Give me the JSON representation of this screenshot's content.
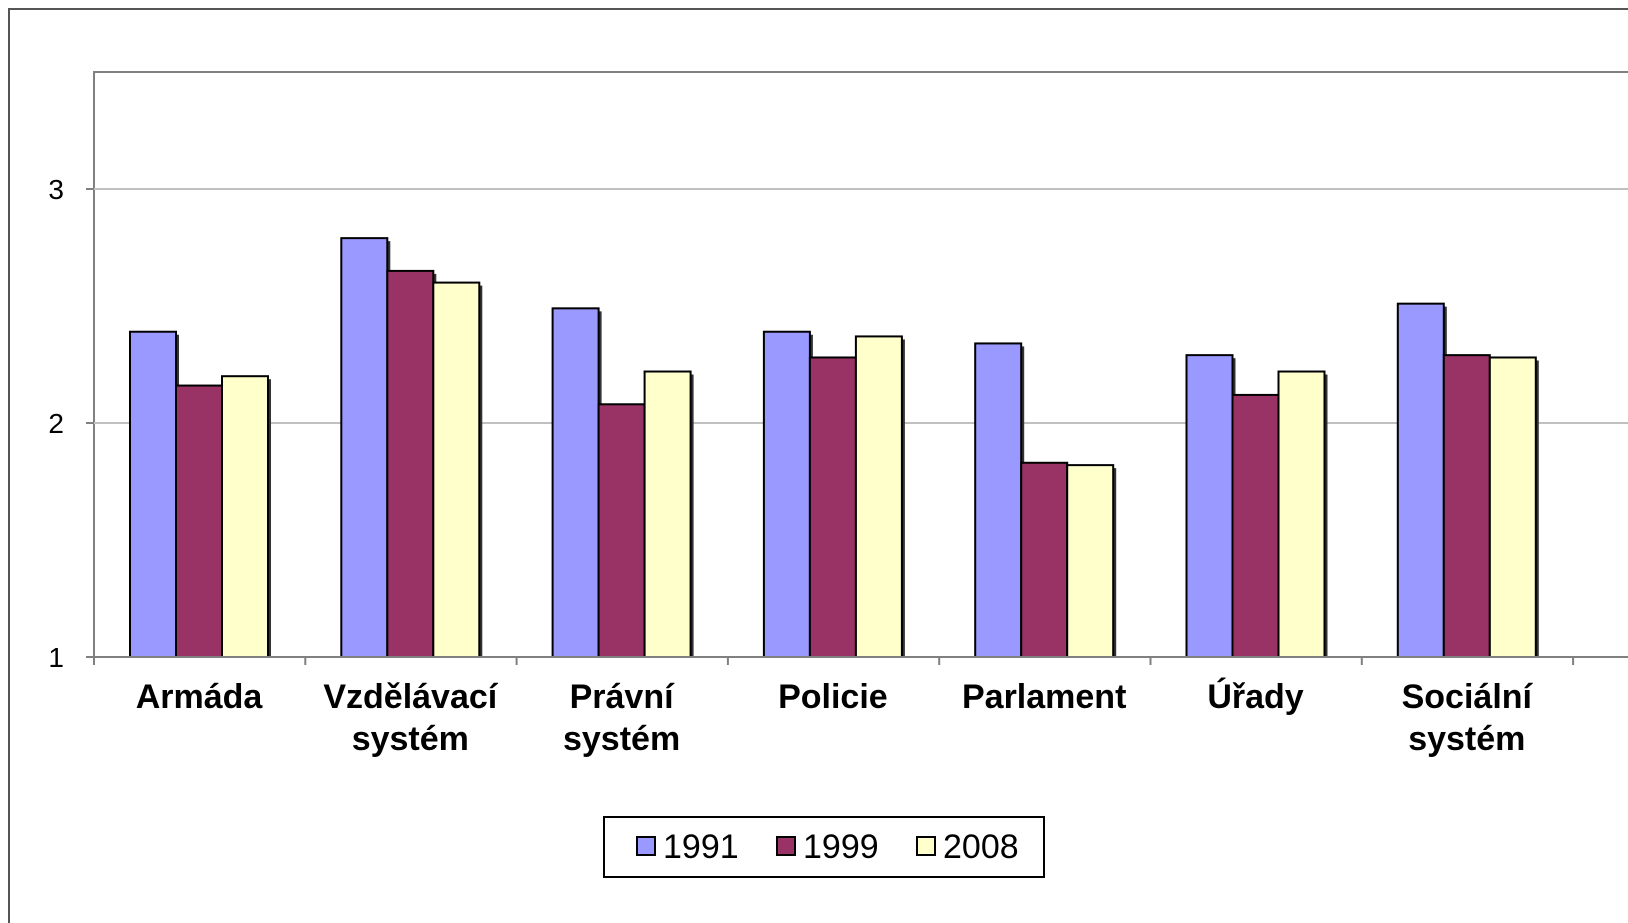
{
  "chart_data": {
    "type": "bar",
    "categories": [
      [
        "Armáda"
      ],
      [
        "Vzdělávací",
        "systém"
      ],
      [
        "Právní",
        "systém"
      ],
      [
        "Policie"
      ],
      [
        "Parlament"
      ],
      [
        "Úřady"
      ],
      [
        "Sociální",
        "systém"
      ]
    ],
    "series": [
      {
        "name": "1991",
        "color": "#9999ff",
        "values": [
          2.39,
          2.79,
          2.49,
          2.39,
          2.34,
          2.29,
          2.51
        ]
      },
      {
        "name": "1999",
        "color": "#993366",
        "values": [
          2.16,
          2.65,
          2.08,
          2.28,
          1.83,
          2.12,
          2.29
        ]
      },
      {
        "name": "2008",
        "color": "#ffffcc",
        "values": [
          2.2,
          2.6,
          2.22,
          2.37,
          1.82,
          2.22,
          2.28
        ]
      }
    ],
    "ylim": [
      1,
      3.5
    ],
    "yticks": [
      "1",
      "2",
      "3"
    ],
    "grid": true,
    "legend_position": "bottom-center"
  }
}
